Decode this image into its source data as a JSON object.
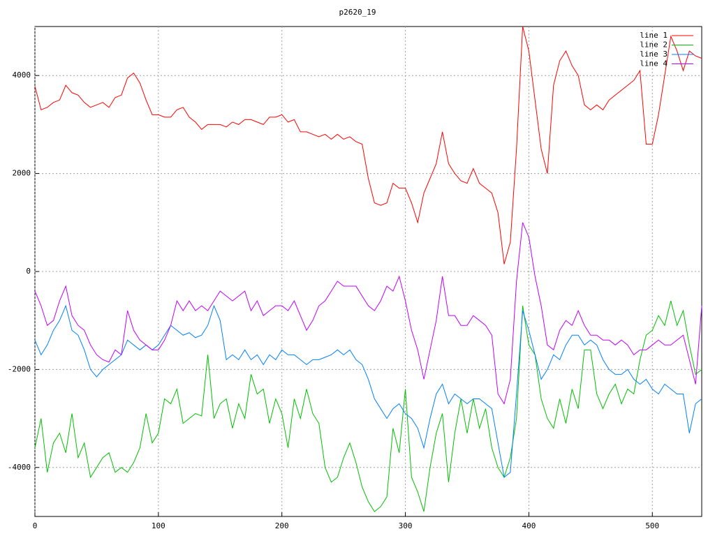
{
  "chart_data": {
    "type": "line",
    "title": "p2620_19",
    "x": [
      0,
      5,
      10,
      15,
      20,
      25,
      30,
      35,
      40,
      45,
      50,
      55,
      60,
      65,
      70,
      75,
      80,
      85,
      90,
      95,
      100,
      105,
      110,
      115,
      120,
      125,
      130,
      135,
      140,
      145,
      150,
      155,
      160,
      165,
      170,
      175,
      180,
      185,
      190,
      195,
      200,
      205,
      210,
      215,
      220,
      225,
      230,
      235,
      240,
      245,
      250,
      255,
      260,
      265,
      270,
      275,
      280,
      285,
      290,
      295,
      300,
      305,
      310,
      315,
      320,
      325,
      330,
      335,
      340,
      345,
      350,
      355,
      360,
      365,
      370,
      375,
      380,
      385,
      390,
      395,
      400,
      405,
      410,
      415,
      420,
      425,
      430,
      435,
      440,
      445,
      450,
      455,
      460,
      465,
      470,
      475,
      480,
      485,
      490,
      495,
      500,
      505,
      510,
      515,
      520,
      525,
      530,
      535,
      540
    ],
    "series": [
      {
        "name": "line 1",
        "color": "#ff0000",
        "values": [
          3780,
          3300,
          3350,
          3450,
          3500,
          3800,
          3650,
          3600,
          3450,
          3350,
          3400,
          3450,
          3350,
          3550,
          3600,
          3950,
          4050,
          3850,
          3500,
          3200,
          3200,
          3150,
          3150,
          3300,
          3350,
          3150,
          3050,
          2900,
          3000,
          3000,
          3000,
          2950,
          3050,
          3000,
          3100,
          3100,
          3050,
          3000,
          3150,
          3150,
          3200,
          3050,
          3100,
          2850,
          2850,
          2800,
          2750,
          2800,
          2700,
          2800,
          2700,
          2750,
          2650,
          2600,
          1900,
          1400,
          1350,
          1400,
          1800,
          1700,
          1700,
          1400,
          1000,
          1600,
          1900,
          2200,
          2850,
          2200,
          2000,
          1850,
          1800,
          2100,
          1800,
          1700,
          1600,
          1200,
          150,
          600,
          2500,
          5000,
          4500,
          3500,
          2500,
          2000,
          3800,
          4300,
          4500,
          4200,
          4000,
          3400,
          3300,
          3400,
          3300,
          3500,
          3600,
          3700,
          3800,
          3900,
          4100,
          2600,
          2600,
          3200,
          4000,
          4800,
          4500,
          4100,
          4500,
          4400,
          4350
        ]
      },
      {
        "name": "line 2",
        "color": "#00c000",
        "values": [
          -3600,
          -3000,
          -4100,
          -3500,
          -3300,
          -3700,
          -2900,
          -3800,
          -3500,
          -4200,
          -4000,
          -3800,
          -3700,
          -4100,
          -4000,
          -4100,
          -3900,
          -3600,
          -2900,
          -3500,
          -3300,
          -2600,
          -2700,
          -2400,
          -3100,
          -3000,
          -2900,
          -2950,
          -1700,
          -3000,
          -2700,
          -2600,
          -3200,
          -2700,
          -3000,
          -2100,
          -2500,
          -2400,
          -3100,
          -2600,
          -2900,
          -3600,
          -2600,
          -3000,
          -2400,
          -2900,
          -3100,
          -4000,
          -4300,
          -4200,
          -3800,
          -3500,
          -3900,
          -4400,
          -4700,
          -4900,
          -4800,
          -4600,
          -3200,
          -3700,
          -2400,
          -4200,
          -4500,
          -4900,
          -4000,
          -3300,
          -2900,
          -4300,
          -3300,
          -2600,
          -3300,
          -2600,
          -3200,
          -2800,
          -3600,
          -4000,
          -4200,
          -3800,
          -3000,
          -700,
          -1500,
          -1700,
          -2600,
          -3000,
          -3200,
          -2600,
          -3100,
          -2400,
          -2800,
          -1600,
          -1600,
          -2500,
          -2800,
          -2500,
          -2300,
          -2700,
          -2400,
          -2500,
          -1800,
          -1300,
          -1200,
          -900,
          -1100,
          -600,
          -1100,
          -800,
          -1500,
          -2100,
          -2000
        ]
      },
      {
        "name": "line 3",
        "color": "#0080ff",
        "values": [
          -1400,
          -1700,
          -1500,
          -1200,
          -1000,
          -700,
          -1200,
          -1300,
          -1600,
          -2000,
          -2150,
          -2000,
          -1900,
          -1800,
          -1700,
          -1400,
          -1500,
          -1600,
          -1500,
          -1600,
          -1500,
          -1300,
          -1100,
          -1200,
          -1300,
          -1250,
          -1350,
          -1300,
          -1100,
          -700,
          -1000,
          -1800,
          -1700,
          -1800,
          -1600,
          -1800,
          -1700,
          -1900,
          -1700,
          -1800,
          -1600,
          -1700,
          -1700,
          -1800,
          -1900,
          -1800,
          -1800,
          -1750,
          -1700,
          -1600,
          -1700,
          -1600,
          -1800,
          -1900,
          -2200,
          -2600,
          -2800,
          -3000,
          -2800,
          -2700,
          -2900,
          -3000,
          -3200,
          -3600,
          -3000,
          -2500,
          -2300,
          -2700,
          -2500,
          -2600,
          -2700,
          -2600,
          -2600,
          -2700,
          -2800,
          -3500,
          -4200,
          -4100,
          -2500,
          -800,
          -1200,
          -1700,
          -2200,
          -2000,
          -1700,
          -1800,
          -1500,
          -1300,
          -1300,
          -1500,
          -1400,
          -1500,
          -1800,
          -2000,
          -2100,
          -2100,
          -2000,
          -2200,
          -2300,
          -2200,
          -2400,
          -2500,
          -2300,
          -2400,
          -2500,
          -2500,
          -3300,
          -2700,
          -2600
        ]
      },
      {
        "name": "line 4",
        "color": "#c000ff",
        "values": [
          -400,
          -700,
          -1100,
          -1000,
          -600,
          -300,
          -900,
          -1100,
          -1200,
          -1500,
          -1700,
          -1800,
          -1850,
          -1600,
          -1700,
          -800,
          -1200,
          -1400,
          -1500,
          -1600,
          -1600,
          -1400,
          -1100,
          -600,
          -800,
          -600,
          -800,
          -700,
          -800,
          -600,
          -400,
          -500,
          -600,
          -500,
          -400,
          -800,
          -600,
          -900,
          -800,
          -700,
          -700,
          -800,
          -600,
          -900,
          -1200,
          -1000,
          -700,
          -600,
          -400,
          -200,
          -300,
          -300,
          -300,
          -500,
          -700,
          -800,
          -600,
          -300,
          -400,
          -100,
          -600,
          -1200,
          -1600,
          -2200,
          -1600,
          -1000,
          -100,
          -900,
          -900,
          -1100,
          -1100,
          -900,
          -1000,
          -1100,
          -1300,
          -2500,
          -2700,
          -2200,
          -200,
          1000,
          700,
          -100,
          -700,
          -1500,
          -1600,
          -1200,
          -1000,
          -1100,
          -800,
          -1100,
          -1300,
          -1300,
          -1400,
          -1400,
          -1500,
          -1400,
          -1500,
          -1700,
          -1600,
          -1600,
          -1500,
          -1400,
          -1500,
          -1500,
          -1400,
          -1300,
          -1800,
          -2300,
          -700
        ]
      }
    ],
    "xlim": [
      0,
      540
    ],
    "ylim": [
      -5000,
      5000
    ],
    "xticks": [
      0,
      100,
      200,
      300,
      400,
      500
    ],
    "yticks": [
      -4000,
      -2000,
      0,
      2000,
      4000
    ],
    "grid": true,
    "legend": "top-right"
  }
}
